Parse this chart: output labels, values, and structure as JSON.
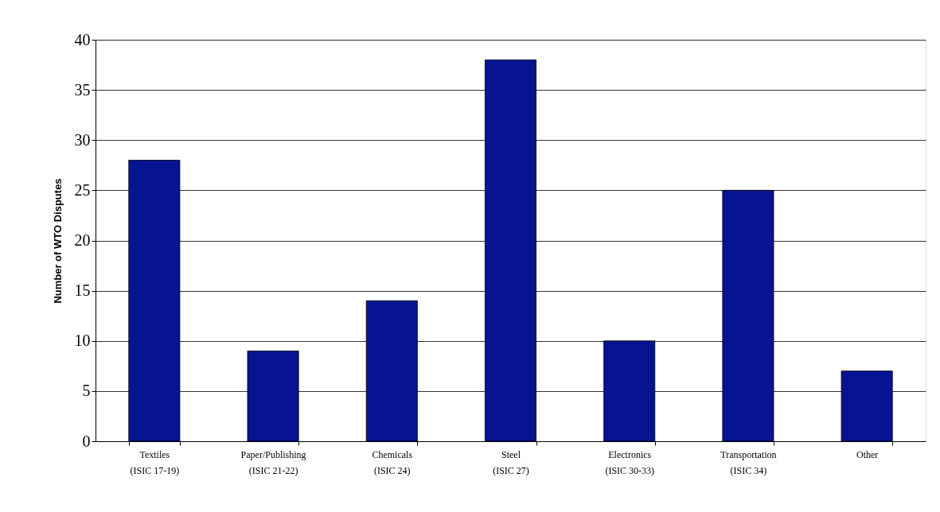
{
  "chart_data": {
    "type": "bar",
    "ylabel": "Number of WTO Disputes",
    "categories": [
      "Textiles\n(ISIC 17-19)",
      "Paper/Publishing\n(ISIC 21-22)",
      "Chemicals\n(ISIC 24)",
      "Steel\n(ISIC 27)",
      "Electronics\n(ISIC 30-33)",
      "Transportation\n(ISIC 34)",
      "Other"
    ],
    "values": [
      28,
      9,
      14,
      38,
      10,
      25,
      7
    ],
    "color": "#061492",
    "ylim": [
      0,
      40
    ],
    "yticks": [
      0,
      5,
      10,
      15,
      20,
      25,
      30,
      35,
      40
    ],
    "grid": "y"
  }
}
